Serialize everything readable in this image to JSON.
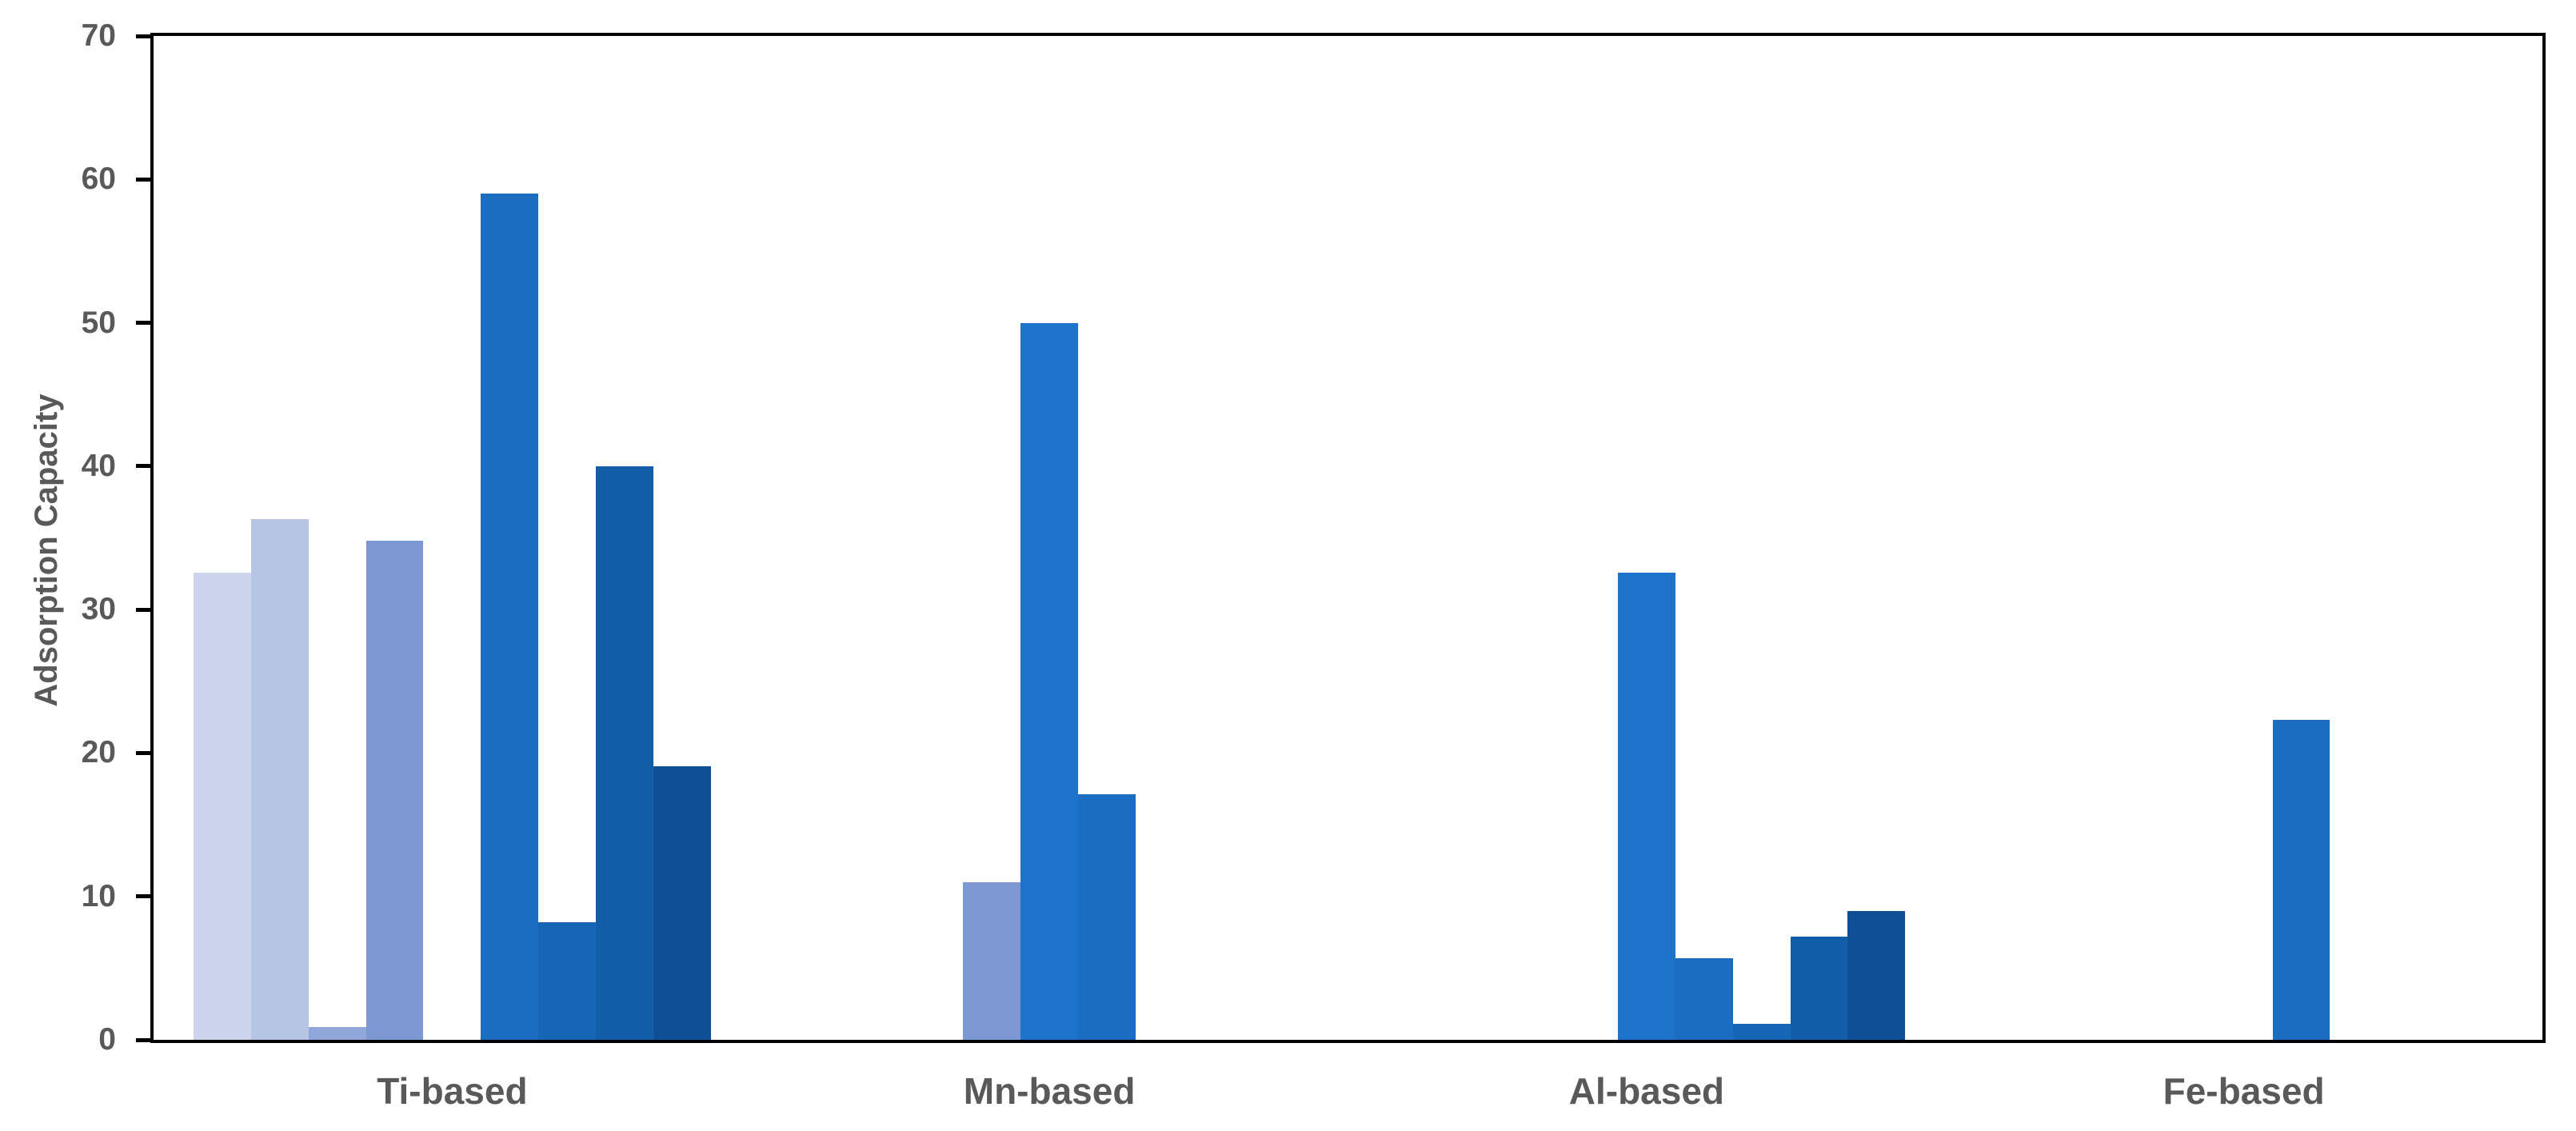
{
  "page": {
    "background": "#ffffff",
    "text_color": "#595959",
    "axis_color": "#000000"
  },
  "chart_data": {
    "type": "bar",
    "title": "",
    "xlabel": "",
    "ylabel": "Adsorption Capacity",
    "ylim": [
      0,
      70
    ],
    "yticks": [
      0,
      10,
      20,
      30,
      40,
      50,
      60,
      70
    ],
    "grid": false,
    "legend": "none",
    "plot_border": true,
    "slots_per_category": 9,
    "categories": [
      "Ti-based",
      "Mn-based",
      "Al-based",
      "Fe-based"
    ],
    "series": [
      {
        "name": "s1",
        "color": "#cdd5ec",
        "values": [
          32.6,
          null,
          null,
          null
        ]
      },
      {
        "name": "s2",
        "color": "#b7c5e5",
        "values": [
          36.3,
          null,
          null,
          null
        ]
      },
      {
        "name": "s3",
        "color": "#8fa6d9",
        "values": [
          0.9,
          null,
          null,
          null
        ]
      },
      {
        "name": "s4",
        "color": "#7d97d3",
        "values": [
          34.8,
          11,
          null,
          null
        ]
      },
      {
        "name": "s5",
        "color": "#1d73c9",
        "values": [
          null,
          50,
          32.6,
          null
        ]
      },
      {
        "name": "s6",
        "color": "#1a6dc0",
        "values": [
          59,
          17.1,
          5.7,
          22.3
        ]
      },
      {
        "name": "s7",
        "color": "#1765b5",
        "values": [
          8.2,
          null,
          1.1,
          null
        ]
      },
      {
        "name": "s8",
        "color": "#125ea8",
        "values": [
          40,
          null,
          7.2,
          null
        ]
      },
      {
        "name": "s9",
        "color": "#0e4f95",
        "values": [
          19.1,
          null,
          9,
          null
        ]
      }
    ]
  }
}
